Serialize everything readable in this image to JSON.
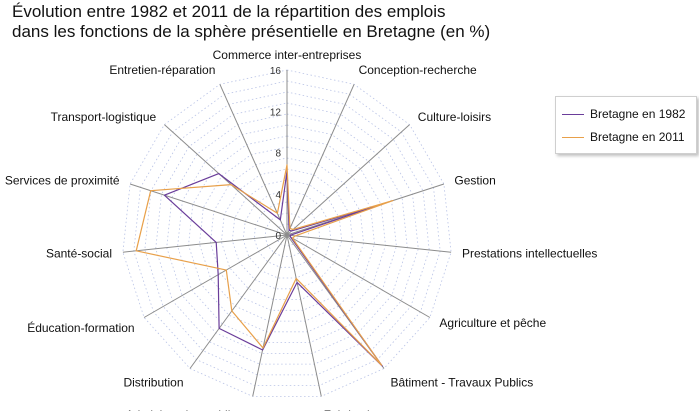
{
  "chart_data": {
    "type": "radar",
    "title_lines": [
      "Évolution entre 1982 et 2011 de la répartition des emplois",
      "dans les fonctions de la sphère présentielle en Bretagne (en %)"
    ],
    "categories": [
      "Commerce inter-entreprises",
      "Conception-recherche",
      "Culture-loisirs",
      "Gestion",
      "Prestations intellectuelles",
      "Agriculture et pêche",
      "Bâtiment - Travaux Publics",
      "Fabrication",
      "Administration publique",
      "Distribution",
      "Éducation-formation",
      "Santé-social",
      "Services de proximité",
      "Transport-logistique",
      "Entretien-réparation"
    ],
    "radial_ticks": [
      "0",
      "4",
      "8",
      "12",
      "16"
    ],
    "rmax": 16,
    "series": [
      {
        "name": "Bretagne en 1982",
        "color": "#6a3d9a",
        "values": [
          6.2,
          0.5,
          0.6,
          9.6,
          0.3,
          0.4,
          15.7,
          4.7,
          11.4,
          11.2,
          7.7,
          6.9,
          12.5,
          8.9,
          1.6
        ]
      },
      {
        "name": "Bretagne en 2011",
        "color": "#e8a04a",
        "values": [
          6.8,
          0.7,
          0.8,
          10.8,
          0.8,
          0.6,
          15.6,
          4.3,
          11.2,
          9.1,
          6.8,
          14.7,
          13.9,
          7.3,
          2.3
        ]
      }
    ]
  }
}
